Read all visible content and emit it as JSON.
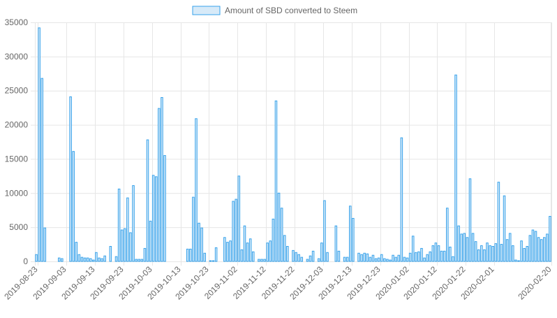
{
  "chart_data": {
    "type": "bar",
    "series": [
      {
        "name": "Amount of SBD converted to Steem",
        "values": [
          1000,
          34200,
          26800,
          4900,
          0,
          0,
          0,
          0,
          500,
          400,
          0,
          0,
          24100,
          16100,
          2800,
          1000,
          600,
          500,
          500,
          400,
          200,
          1300,
          500,
          400,
          800,
          0,
          2200,
          0,
          700,
          10600,
          4600,
          4800,
          9300,
          4200,
          11100,
          300,
          300,
          300,
          1900,
          17800,
          5900,
          12600,
          12400,
          22400,
          24000,
          15500,
          0,
          0,
          0,
          0,
          0,
          0,
          0,
          1800,
          1800,
          9400,
          20900,
          5600,
          4900,
          1200,
          0,
          100,
          100,
          2000,
          0,
          0,
          3500,
          2800,
          3000,
          8800,
          9100,
          12500,
          1700,
          5200,
          2700,
          3300,
          1400,
          0,
          300,
          300,
          300,
          2700,
          3000,
          6200,
          23500,
          10000,
          7800,
          3800,
          2200,
          0,
          1600,
          1300,
          1000,
          600,
          0,
          300,
          800,
          1500,
          0,
          400,
          2700,
          8900,
          1300,
          0,
          0,
          5200,
          1500,
          0,
          600,
          600,
          8100,
          6300,
          0,
          1200,
          1000,
          1200,
          1100,
          600,
          900,
          400,
          500,
          1000,
          400,
          300,
          200,
          900,
          600,
          900,
          18100,
          600,
          500,
          1200,
          3700,
          1300,
          1400,
          1900,
          500,
          1000,
          1400,
          2300,
          2700,
          2300,
          1500,
          1500,
          7800,
          2100,
          700,
          27300,
          5200,
          4000,
          4100,
          3500,
          12100,
          4100,
          2900,
          1700,
          2300,
          1700,
          2700,
          2300,
          2200,
          2600,
          11600,
          2500,
          9600,
          3200,
          4100,
          2300,
          200,
          100,
          3000,
          1900,
          2200,
          3800,
          4600,
          4400,
          3500,
          3200,
          3500,
          4000,
          6600
        ]
      }
    ],
    "x_tick_labels": [
      "2019-08-23",
      "2019-09-03",
      "2019-09-13",
      "2019-09-23",
      "2019-10-03",
      "2019-10-13",
      "2019-10-23",
      "2019-11-02",
      "2019-11-12",
      "2019-11-22",
      "2019-12-03",
      "2019-12-13",
      "2019-12-23",
      "2020-01-02",
      "2020-01-12",
      "2020-01-22",
      "2020-02-01",
      "2020-02-20"
    ],
    "x_tick_positions": [
      1,
      11,
      21,
      31,
      41,
      51,
      61,
      71,
      81,
      91,
      101,
      111,
      121,
      131,
      141,
      151,
      161,
      180
    ],
    "y_ticks": [
      0,
      5000,
      10000,
      15000,
      20000,
      25000,
      30000,
      35000
    ],
    "ylim": [
      0,
      35000
    ],
    "grid": true,
    "legend_position": "top-center",
    "colors": {
      "bar_fill": "#d7eaf8",
      "bar_stroke": "#36a2eb",
      "grid": "#e6e6e6",
      "text": "#666666"
    }
  }
}
